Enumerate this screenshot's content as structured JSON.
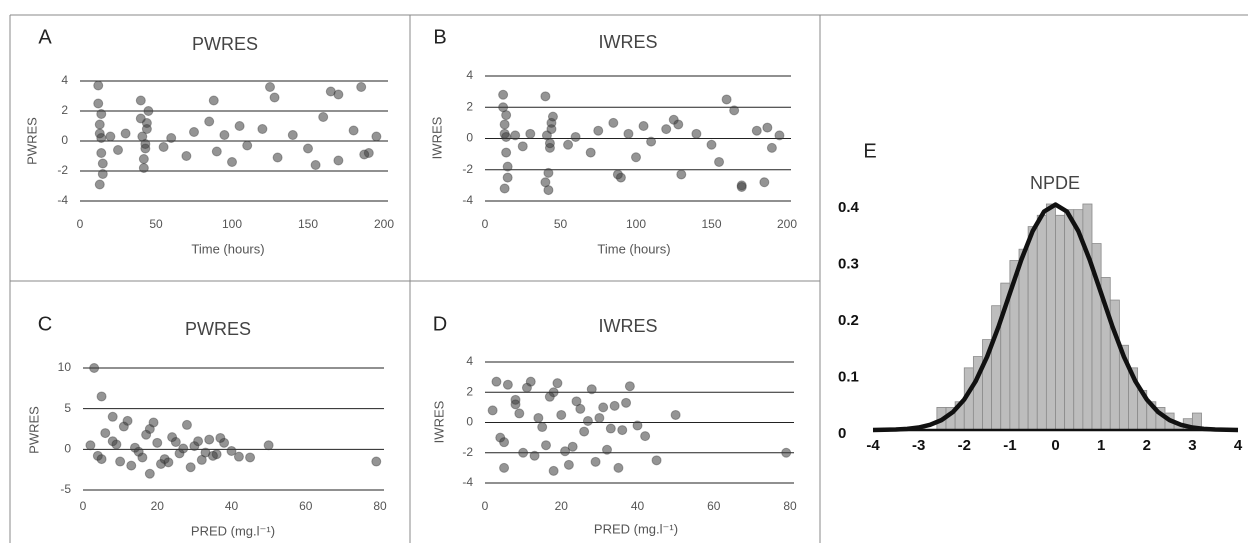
{
  "chart_data": [
    {
      "type": "scatter",
      "label": "A",
      "title": "PWRES",
      "x_label": "Time (hours)",
      "y_label": "PWRES",
      "color": "#3c3c3c",
      "xlim": [
        0,
        200
      ],
      "xticks": [
        0,
        50,
        100,
        150,
        200
      ],
      "ylim": [
        -4,
        4
      ],
      "yticks": [
        -4,
        -2,
        0,
        2,
        4
      ],
      "grid": true,
      "x": [
        12,
        13,
        14,
        15,
        13,
        14,
        12,
        15,
        14,
        13,
        40,
        42,
        44,
        43,
        41,
        45,
        42,
        44,
        43,
        40,
        20,
        25,
        30,
        55,
        60,
        70,
        75,
        85,
        90,
        95,
        100,
        105,
        110,
        120,
        125,
        130,
        140,
        150,
        160,
        165,
        170,
        180,
        185,
        190,
        195,
        88,
        128,
        155,
        170,
        187
      ],
      "values": [
        3.7,
        -2.9,
        1.8,
        -1.5,
        0.5,
        -0.8,
        2.5,
        -2.2,
        0.2,
        1.1,
        2.7,
        -1.8,
        1.2,
        -0.5,
        0.3,
        2.0,
        -1.2,
        0.8,
        -0.2,
        1.5,
        0.3,
        -0.6,
        0.5,
        -0.4,
        0.2,
        -1.0,
        0.6,
        1.3,
        -0.7,
        0.4,
        -1.4,
        1.0,
        -0.3,
        0.8,
        3.6,
        -1.1,
        0.4,
        -0.5,
        1.6,
        3.3,
        -1.3,
        0.7,
        3.6,
        -0.8,
        0.3,
        2.7,
        2.9,
        -1.6,
        3.1,
        -0.9
      ]
    },
    {
      "type": "scatter",
      "label": "B",
      "title": "IWRES",
      "x_label": "Time (hours)",
      "y_label": "IWRES",
      "color": "#3c3c3c",
      "xlim": [
        0,
        200
      ],
      "xticks": [
        0,
        50,
        100,
        150,
        200
      ],
      "ylim": [
        -4,
        4
      ],
      "yticks": [
        -4,
        -2,
        0,
        2,
        4
      ],
      "grid": true,
      "x": [
        12,
        13,
        14,
        15,
        13,
        14,
        12,
        15,
        14,
        13,
        40,
        42,
        44,
        43,
        41,
        45,
        42,
        44,
        43,
        40,
        20,
        25,
        30,
        55,
        60,
        70,
        75,
        85,
        90,
        95,
        100,
        105,
        110,
        120,
        125,
        130,
        140,
        150,
        160,
        165,
        170,
        180,
        185,
        190,
        195,
        88,
        128,
        155,
        170,
        187
      ],
      "values": [
        2.8,
        -3.2,
        1.5,
        -1.8,
        0.3,
        -0.9,
        2.0,
        -2.5,
        0.1,
        0.9,
        2.7,
        -3.3,
        1.0,
        -0.6,
        0.2,
        1.4,
        -2.2,
        0.6,
        -0.3,
        -2.8,
        0.2,
        -0.5,
        0.3,
        -0.4,
        0.1,
        -0.9,
        0.5,
        1.0,
        -2.5,
        0.3,
        -1.2,
        0.8,
        -0.2,
        0.6,
        1.2,
        -2.3,
        0.3,
        -0.4,
        2.5,
        1.8,
        -3.0,
        0.5,
        -2.8,
        -0.6,
        0.2,
        -2.3,
        0.9,
        -1.5,
        -3.1,
        0.7
      ]
    },
    {
      "type": "scatter",
      "label": "C",
      "title": "PWRES",
      "x_label": "PRED (mg.l⁻¹)",
      "y_label": "PWRES",
      "color": "#3c3c3c",
      "xlim": [
        0,
        80
      ],
      "xticks": [
        0,
        20,
        40,
        60,
        80
      ],
      "ylim": [
        -5,
        10
      ],
      "yticks": [
        -5,
        0,
        5,
        10
      ],
      "grid": true,
      "x": [
        3,
        5,
        8,
        50,
        79,
        45,
        18,
        2,
        4,
        6,
        8,
        10,
        12,
        14,
        16,
        18,
        20,
        22,
        24,
        26,
        28,
        30,
        32,
        34,
        36,
        38,
        40,
        42,
        5,
        9,
        13,
        17,
        21,
        25,
        29,
        33,
        37,
        11,
        15,
        19,
        23,
        27,
        31,
        35
      ],
      "values": [
        10,
        6.5,
        4,
        0.5,
        -1.5,
        -1,
        -3,
        0.5,
        -0.8,
        2,
        1,
        -1.5,
        3.5,
        0.2,
        -1,
        2.5,
        0.8,
        -1.2,
        1.5,
        -0.5,
        3,
        0.4,
        -1.3,
        1.2,
        -0.6,
        0.8,
        -0.2,
        -0.9,
        -1.2,
        0.6,
        -2,
        1.8,
        -1.8,
        0.9,
        -2.2,
        -0.4,
        1.4,
        2.8,
        -0.3,
        3.3,
        -1.6,
        0.1,
        1.0,
        -0.8
      ]
    },
    {
      "type": "scatter",
      "label": "D",
      "title": "IWRES",
      "x_label": "PRED (mg.l⁻¹)",
      "y_label": "IWRES",
      "color": "#3c3c3c",
      "xlim": [
        0,
        80
      ],
      "xticks": [
        0,
        20,
        40,
        60,
        80
      ],
      "ylim": [
        -4,
        4
      ],
      "yticks": [
        -4,
        -2,
        0,
        2,
        4
      ],
      "grid": true,
      "x": [
        3,
        5,
        8,
        50,
        79,
        45,
        18,
        2,
        4,
        6,
        8,
        10,
        12,
        14,
        16,
        18,
        20,
        22,
        24,
        26,
        28,
        30,
        32,
        34,
        36,
        38,
        40,
        42,
        5,
        9,
        13,
        17,
        21,
        25,
        29,
        33,
        37,
        11,
        15,
        19,
        23,
        27,
        31,
        35
      ],
      "values": [
        2.7,
        -3,
        1.5,
        0.5,
        -2,
        -2.5,
        -3.2,
        0.8,
        -1,
        2.5,
        1.2,
        -2,
        2.7,
        0.3,
        -1.5,
        2,
        0.5,
        -2.8,
        1.4,
        -0.6,
        2.2,
        0.3,
        -1.8,
        1.1,
        -0.5,
        2.4,
        -0.2,
        -0.9,
        -1.3,
        0.6,
        -2.2,
        1.7,
        -1.9,
        0.9,
        -2.6,
        -0.4,
        1.3,
        2.3,
        -0.3,
        2.6,
        -1.6,
        0.1,
        1.0,
        -3.0
      ]
    },
    {
      "type": "histogram",
      "label": "E",
      "title": "NPDE",
      "color": "#bdbdbd",
      "curve_color": "#111111",
      "xlim": [
        -4,
        4
      ],
      "xticks": [
        -4,
        -3,
        -2,
        -1,
        0,
        1,
        2,
        3,
        4
      ],
      "ylim": [
        0,
        0.4
      ],
      "yticks": [
        0,
        0.1,
        0.2,
        0.3,
        0.4
      ],
      "bins": [
        -2.6,
        -2.4,
        -2.2,
        -2.0,
        -1.8,
        -1.6,
        -1.4,
        -1.2,
        -1.0,
        -0.8,
        -0.6,
        -0.4,
        -0.2,
        0.0,
        0.2,
        0.4,
        0.6,
        0.8,
        1.0,
        1.2,
        1.4,
        1.6,
        1.8,
        2.0,
        2.2,
        2.4,
        2.6,
        2.8,
        3.0,
        3.2
      ],
      "values": [
        0.04,
        0.04,
        0.05,
        0.11,
        0.13,
        0.16,
        0.22,
        0.26,
        0.3,
        0.32,
        0.36,
        0.38,
        0.4,
        0.38,
        0.39,
        0.39,
        0.4,
        0.33,
        0.27,
        0.23,
        0.15,
        0.11,
        0.07,
        0.05,
        0.04,
        0.03,
        0.01,
        0.02,
        0.03
      ],
      "curve_x": [
        -4,
        -3.75,
        -3.5,
        -3.25,
        -3,
        -2.75,
        -2.5,
        -2.25,
        -2,
        -1.75,
        -1.5,
        -1.25,
        -1,
        -0.75,
        -0.5,
        -0.25,
        0,
        0.25,
        0.5,
        0.75,
        1,
        1.25,
        1.5,
        1.75,
        2,
        2.25,
        2.5,
        2.75,
        3,
        3.25,
        3.5,
        3.75,
        4
      ],
      "curve_values": [
        0.0001,
        0.0004,
        0.0009,
        0.002,
        0.0044,
        0.0091,
        0.0175,
        0.0317,
        0.054,
        0.0863,
        0.1295,
        0.1826,
        0.242,
        0.3011,
        0.3521,
        0.3867,
        0.399,
        0.3867,
        0.3521,
        0.3011,
        0.242,
        0.1826,
        0.1295,
        0.0863,
        0.054,
        0.0317,
        0.0175,
        0.0091,
        0.0044,
        0.002,
        0.0009,
        0.0004,
        0.0001
      ]
    }
  ]
}
